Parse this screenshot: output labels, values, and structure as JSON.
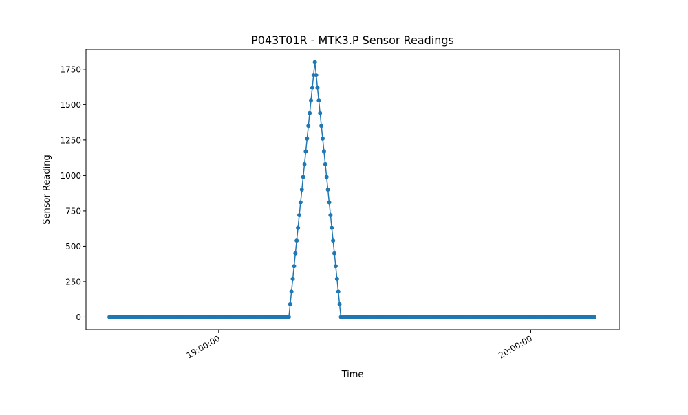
{
  "chart_data": {
    "type": "line",
    "title": "P043T01R - MTK3.P Sensor Readings",
    "xlabel": "Time",
    "ylabel": "Sensor Reading",
    "x_tick_labels": [
      "19:00:00",
      "20:00:00"
    ],
    "y_tick_labels": [
      "0",
      "250",
      "500",
      "750",
      "1000",
      "1250",
      "1500",
      "1750"
    ],
    "y_ticks": [
      0,
      250,
      500,
      750,
      1000,
      1250,
      1500,
      1750
    ],
    "ylim": [
      -90,
      1890
    ],
    "xlim": [
      "18:34:30",
      "20:17:00"
    ],
    "grid": false,
    "marker": "circle",
    "series_color": "#1f77b4",
    "sample_interval_seconds": 15,
    "series": [
      {
        "x_start": "18:39:00",
        "x_end": "20:12:15",
        "baseline_value": 0,
        "nonzero_points": [
          {
            "t": "19:13:45",
            "v": 90
          },
          {
            "t": "19:14:00",
            "v": 180
          },
          {
            "t": "19:14:15",
            "v": 270
          },
          {
            "t": "19:14:30",
            "v": 360
          },
          {
            "t": "19:14:45",
            "v": 450
          },
          {
            "t": "19:15:00",
            "v": 540
          },
          {
            "t": "19:15:15",
            "v": 630
          },
          {
            "t": "19:15:30",
            "v": 720
          },
          {
            "t": "19:15:45",
            "v": 810
          },
          {
            "t": "19:16:00",
            "v": 900
          },
          {
            "t": "19:16:15",
            "v": 990
          },
          {
            "t": "19:16:30",
            "v": 1080
          },
          {
            "t": "19:16:45",
            "v": 1170
          },
          {
            "t": "19:17:00",
            "v": 1260
          },
          {
            "t": "19:17:15",
            "v": 1350
          },
          {
            "t": "19:17:30",
            "v": 1440
          },
          {
            "t": "19:17:45",
            "v": 1530
          },
          {
            "t": "19:18:00",
            "v": 1620
          },
          {
            "t": "19:18:15",
            "v": 1710
          },
          {
            "t": "19:18:30",
            "v": 1800
          },
          {
            "t": "19:18:45",
            "v": 1710
          },
          {
            "t": "19:19:00",
            "v": 1620
          },
          {
            "t": "19:19:15",
            "v": 1530
          },
          {
            "t": "19:19:30",
            "v": 1440
          },
          {
            "t": "19:19:45",
            "v": 1350
          },
          {
            "t": "19:20:00",
            "v": 1260
          },
          {
            "t": "19:20:15",
            "v": 1170
          },
          {
            "t": "19:20:30",
            "v": 1080
          },
          {
            "t": "19:20:45",
            "v": 990
          },
          {
            "t": "19:21:00",
            "v": 900
          },
          {
            "t": "19:21:15",
            "v": 810
          },
          {
            "t": "19:21:30",
            "v": 720
          },
          {
            "t": "19:21:45",
            "v": 630
          },
          {
            "t": "19:22:00",
            "v": 540
          },
          {
            "t": "19:22:15",
            "v": 450
          },
          {
            "t": "19:22:30",
            "v": 360
          },
          {
            "t": "19:22:45",
            "v": 270
          },
          {
            "t": "19:23:00",
            "v": 180
          },
          {
            "t": "19:23:15",
            "v": 90
          }
        ]
      }
    ]
  }
}
